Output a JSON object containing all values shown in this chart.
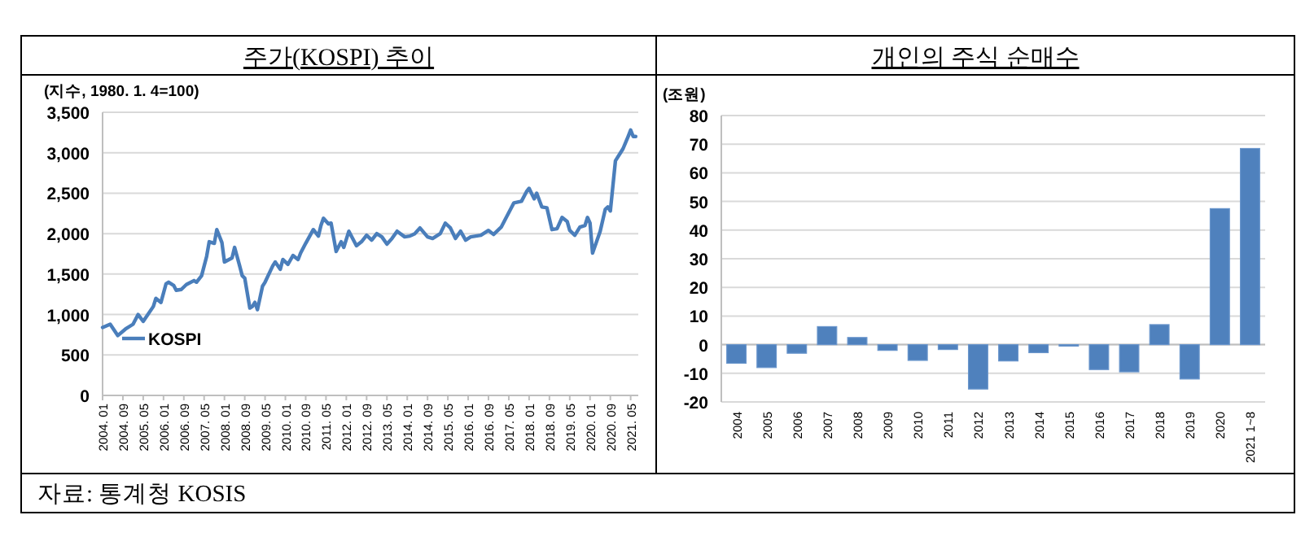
{
  "chart_data": [
    {
      "type": "line",
      "title": "주가(KOSPI) 추이",
      "ylabel": "(지수, 1980. 1. 4=100)",
      "grid": "y",
      "legend": "left",
      "xlim": [
        "2004-01",
        "2021-08"
      ],
      "xticks": [
        {
          "value": "2004-01",
          "label": "2004. 01"
        },
        {
          "value": "2004-09",
          "label": "2004. 09"
        },
        {
          "value": "2005-05",
          "label": "2005. 05"
        },
        {
          "value": "2006-01",
          "label": "2006. 01"
        },
        {
          "value": "2006-09",
          "label": "2006. 09"
        },
        {
          "value": "2007-05",
          "label": "2007. 05"
        },
        {
          "value": "2008-01",
          "label": "2008. 01"
        },
        {
          "value": "2008-09",
          "label": "2008. 09"
        },
        {
          "value": "2009-05",
          "label": "2009. 05"
        },
        {
          "value": "2010-01",
          "label": "2010. 01"
        },
        {
          "value": "2010-09",
          "label": "2010. 09"
        },
        {
          "value": "2011-05",
          "label": "2011. 05"
        },
        {
          "value": "2012-01",
          "label": "2012. 01"
        },
        {
          "value": "2012-09",
          "label": "2012. 09"
        },
        {
          "value": "2013-05",
          "label": "2013. 05"
        },
        {
          "value": "2014-01",
          "label": "2014. 01"
        },
        {
          "value": "2014-09",
          "label": "2014. 09"
        },
        {
          "value": "2015-05",
          "label": "2015. 05"
        },
        {
          "value": "2016-01",
          "label": "2016. 01"
        },
        {
          "value": "2016-09",
          "label": "2016. 09"
        },
        {
          "value": "2017-05",
          "label": "2017. 05"
        },
        {
          "value": "2018-01",
          "label": "2018. 01"
        },
        {
          "value": "2018-09",
          "label": "2018. 09"
        },
        {
          "value": "2019-05",
          "label": "2019. 05"
        },
        {
          "value": "2020-01",
          "label": "2020. 01"
        },
        {
          "value": "2020-09",
          "label": "2020. 09"
        },
        {
          "value": "2021-05",
          "label": "2021. 05"
        }
      ],
      "ylim": [
        0,
        3500
      ],
      "yticks": [
        {
          "value": 0,
          "label": "0"
        },
        {
          "value": 500,
          "label": "500"
        },
        {
          "value": 1000,
          "label": "1,000"
        },
        {
          "value": 1500,
          "label": "1,500"
        },
        {
          "value": 2000,
          "label": "2,000"
        },
        {
          "value": 2500,
          "label": "2,500"
        },
        {
          "value": 3000,
          "label": "3,000"
        },
        {
          "value": 3500,
          "label": "3,500"
        }
      ],
      "annotations": [
        "자료: 통계청 KOSIS"
      ],
      "series": [
        {
          "name": "KOSPI",
          "color": "#4a7ebb",
          "x": [
            "2004-01",
            "2004-04",
            "2004-07",
            "2004-10",
            "2005-01",
            "2005-03",
            "2005-05",
            "2005-09",
            "2005-10",
            "2005-12",
            "2006-02",
            "2006-03",
            "2006-05",
            "2006-06",
            "2006-08",
            "2006-10",
            "2007-01",
            "2007-02",
            "2007-04",
            "2007-06",
            "2007-07",
            "2007-09",
            "2007-10",
            "2007-12",
            "2008-01",
            "2008-04",
            "2008-05",
            "2008-07",
            "2008-08",
            "2008-09",
            "2008-11",
            "2008-12",
            "2009-01",
            "2009-02",
            "2009-04",
            "2009-05",
            "2009-08",
            "2009-09",
            "2009-11",
            "2009-12",
            "2010-02",
            "2010-04",
            "2010-06",
            "2010-07",
            "2010-09",
            "2010-12",
            "2011-02",
            "2011-03",
            "2011-04",
            "2011-06",
            "2011-07",
            "2011-09",
            "2011-11",
            "2011-12",
            "2012-02",
            "2012-05",
            "2012-07",
            "2012-09",
            "2012-11",
            "2013-01",
            "2013-03",
            "2013-05",
            "2013-07",
            "2013-09",
            "2013-12",
            "2014-02",
            "2014-04",
            "2014-06",
            "2014-09",
            "2014-11",
            "2015-02",
            "2015-04",
            "2015-06",
            "2015-08",
            "2015-10",
            "2015-12",
            "2016-02",
            "2016-06",
            "2016-09",
            "2016-11",
            "2017-02",
            "2017-04",
            "2017-07",
            "2017-10",
            "2017-12",
            "2018-01",
            "2018-03",
            "2018-04",
            "2018-06",
            "2018-08",
            "2018-10",
            "2018-12",
            "2019-02",
            "2019-04",
            "2019-05",
            "2019-07",
            "2019-09",
            "2019-11",
            "2019-12",
            "2020-01",
            "2020-02",
            "2020-05",
            "2020-07",
            "2020-08",
            "2020-09",
            "2020-11",
            "2021-02",
            "2021-04",
            "2021-05",
            "2021-06",
            "2021-07"
          ],
          "values": [
            840,
            880,
            740,
            820,
            880,
            1000,
            915,
            1100,
            1200,
            1150,
            1380,
            1400,
            1360,
            1300,
            1310,
            1370,
            1420,
            1400,
            1480,
            1720,
            1900,
            1880,
            2050,
            1890,
            1650,
            1700,
            1830,
            1600,
            1480,
            1450,
            1080,
            1100,
            1150,
            1060,
            1350,
            1400,
            1600,
            1650,
            1560,
            1680,
            1620,
            1730,
            1680,
            1760,
            1880,
            2050,
            1970,
            2100,
            2190,
            2120,
            2130,
            1780,
            1900,
            1830,
            2030,
            1850,
            1900,
            1980,
            1920,
            2000,
            1960,
            1870,
            1940,
            2030,
            1960,
            1970,
            2000,
            2070,
            1960,
            1940,
            2000,
            2130,
            2070,
            1940,
            2030,
            1920,
            1960,
            1980,
            2040,
            1990,
            2080,
            2200,
            2380,
            2400,
            2520,
            2560,
            2430,
            2500,
            2330,
            2320,
            2050,
            2060,
            2200,
            2150,
            2040,
            1980,
            2080,
            2100,
            2200,
            2130,
            1760,
            2030,
            2300,
            2330,
            2280,
            2900,
            3050,
            3200,
            3280,
            3200,
            3200
          ]
        }
      ]
    },
    {
      "type": "bar",
      "title": "개인의 주식 순매수",
      "ylabel": "(조원)",
      "grid": "y",
      "categories": [
        "2004",
        "2005",
        "2006",
        "2007",
        "2008",
        "2009",
        "2010",
        "2011",
        "2012",
        "2013",
        "2014",
        "2015",
        "2016",
        "2017",
        "2018",
        "2019",
        "2020",
        "2021 1~8"
      ],
      "ylim": [
        -20,
        80
      ],
      "yticks": [
        -20,
        -10,
        0,
        10,
        20,
        30,
        40,
        50,
        60,
        70,
        80
      ],
      "series": [
        {
          "color": "#4f81bd",
          "values": [
            -6.5,
            -8,
            -3,
            6.3,
            2.5,
            -2,
            -5.5,
            -1.7,
            -15.5,
            -5.7,
            -2.8,
            -0.5,
            -8.7,
            -9.5,
            7,
            -12,
            47.5,
            68.5
          ]
        }
      ]
    }
  ]
}
